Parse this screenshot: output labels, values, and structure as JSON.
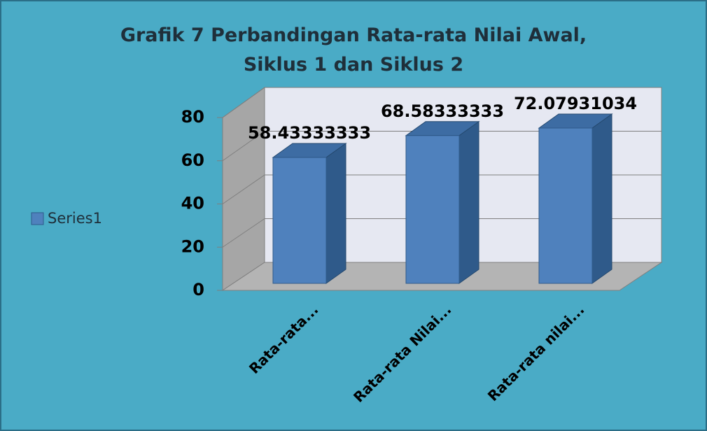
{
  "chart_data": {
    "type": "bar",
    "title": "Grafik 7 Perbandingan Rata-rata Nilai Awal, Siklus 1 dan Siklus 2",
    "categories": [
      "Rata-rata...",
      "Rata-rata Nilai...",
      "Rata-rata nilai..."
    ],
    "series": [
      {
        "name": "Series1",
        "color": "#4f81bd",
        "values": [
          58.43333333,
          68.58333333,
          72.07931034
        ]
      }
    ],
    "ylim": [
      0,
      80
    ],
    "yticks": [
      0,
      20,
      40,
      60,
      80
    ],
    "grid": true,
    "legend": "left"
  }
}
